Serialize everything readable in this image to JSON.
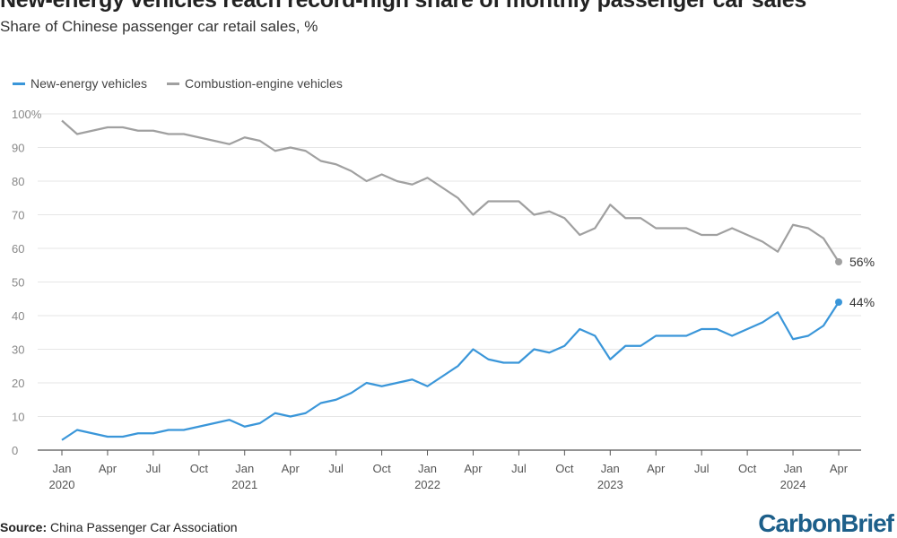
{
  "chart_data": {
    "type": "line",
    "title": "New-energy vehicles reach record-high share of monthly passenger car sales",
    "subtitle": "Share of Chinese passenger car retail sales, %",
    "xlabel": "",
    "ylabel": "",
    "ylim": [
      0,
      100
    ],
    "yticks": [
      "0",
      "10",
      "20",
      "30",
      "40",
      "50",
      "60",
      "70",
      "80",
      "90",
      "100%"
    ],
    "xticks": [
      {
        "month": 0,
        "label": "Jan",
        "year": "2020"
      },
      {
        "month": 3,
        "label": "Apr"
      },
      {
        "month": 6,
        "label": "Jul"
      },
      {
        "month": 9,
        "label": "Oct"
      },
      {
        "month": 12,
        "label": "Jan",
        "year": "2021"
      },
      {
        "month": 15,
        "label": "Apr"
      },
      {
        "month": 18,
        "label": "Jul"
      },
      {
        "month": 21,
        "label": "Oct"
      },
      {
        "month": 24,
        "label": "Jan",
        "year": "2022"
      },
      {
        "month": 27,
        "label": "Apr"
      },
      {
        "month": 30,
        "label": "Jul"
      },
      {
        "month": 33,
        "label": "Oct"
      },
      {
        "month": 36,
        "label": "Jan",
        "year": "2023"
      },
      {
        "month": 39,
        "label": "Apr"
      },
      {
        "month": 42,
        "label": "Jul"
      },
      {
        "month": 45,
        "label": "Oct"
      },
      {
        "month": 48,
        "label": "Jan",
        "year": "2024"
      },
      {
        "month": 51,
        "label": "Apr"
      }
    ],
    "x_range": [
      "Jan 2020",
      "Apr 2024"
    ],
    "grid": true,
    "legend_position": "top-left",
    "series": [
      {
        "name": "New-energy vehicles",
        "color": "#3a96d9",
        "end_label": "44%",
        "values": [
          3,
          6,
          5,
          4,
          4,
          5,
          5,
          6,
          6,
          7,
          8,
          9,
          7,
          8,
          11,
          10,
          11,
          14,
          15,
          17,
          20,
          19,
          20,
          21,
          19,
          22,
          25,
          30,
          27,
          26,
          26,
          30,
          29,
          31,
          36,
          34,
          27,
          31,
          31,
          34,
          34,
          34,
          36,
          36,
          34,
          36,
          38,
          41,
          33,
          34,
          37,
          44
        ]
      },
      {
        "name": "Combustion-engine vehicles",
        "color": "#a0a0a0",
        "end_label": "56%",
        "values": [
          98,
          94,
          95,
          96,
          96,
          95,
          95,
          94,
          94,
          93,
          92,
          91,
          93,
          92,
          89,
          90,
          89,
          86,
          85,
          83,
          80,
          82,
          80,
          79,
          81,
          78,
          75,
          70,
          74,
          74,
          74,
          70,
          71,
          69,
          64,
          66,
          73,
          69,
          69,
          66,
          66,
          66,
          64,
          64,
          66,
          64,
          62,
          59,
          67,
          66,
          63,
          56
        ]
      }
    ]
  },
  "footer": {
    "source_label": "Source:",
    "source_text": " China Passenger Car Association",
    "logo": "CarbonBrief"
  }
}
